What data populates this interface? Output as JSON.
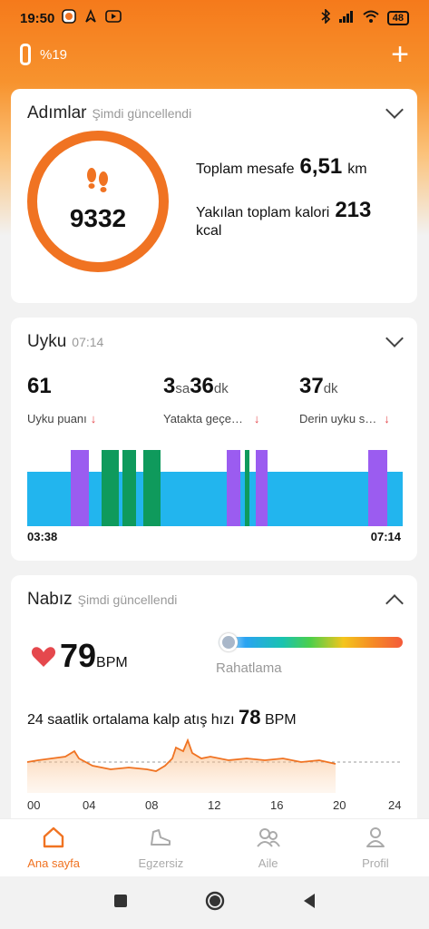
{
  "status": {
    "time": "19:50",
    "battery": "48"
  },
  "topbar": {
    "band_percent": "%19"
  },
  "steps": {
    "title": "Adımlar",
    "subtitle": "Şimdi güncellendi",
    "value": "9332",
    "distance_label": "Toplam mesafe",
    "distance_value": "6,51",
    "distance_unit": "km",
    "calorie_label": "Yakılan toplam kalori",
    "calorie_value": "213",
    "calorie_unit": "kcal"
  },
  "sleep": {
    "title": "Uyku",
    "subtitle": "07:14",
    "score_value": "61",
    "score_label": "Uyku puanı",
    "bed_h": "3",
    "bed_h_unit": "sa",
    "bed_m": "36",
    "bed_m_unit": "dk",
    "bed_label": "Yatakta geçe…",
    "deep_m": "37",
    "deep_m_unit": "dk",
    "deep_label": "Derin uyku s…",
    "start_time": "03:38",
    "end_time": "07:14",
    "colors": {
      "light": "#22b5ee",
      "rem": "#9b5cf0",
      "deep": "#0f9a5c"
    }
  },
  "heart": {
    "title": "Nabız",
    "subtitle": "Şimdi güncellendi",
    "bpm_value": "79",
    "bpm_unit": "BPM",
    "zone_label": "Rahatlama",
    "avg_label": "24 saatlik ortalama kalp atış hızı",
    "avg_value": "78",
    "avg_unit": "BPM",
    "x_ticks": [
      "00",
      "04",
      "08",
      "12",
      "16",
      "20",
      "24"
    ],
    "accent": "#f07322"
  },
  "nav": {
    "items": [
      {
        "label": "Ana sayfa",
        "icon": "home-icon"
      },
      {
        "label": "Egzersiz",
        "icon": "shoe-icon"
      },
      {
        "label": "Aile",
        "icon": "family-icon"
      },
      {
        "label": "Profil",
        "icon": "profile-icon"
      }
    ]
  },
  "brand": {
    "accent": "#f07322"
  }
}
